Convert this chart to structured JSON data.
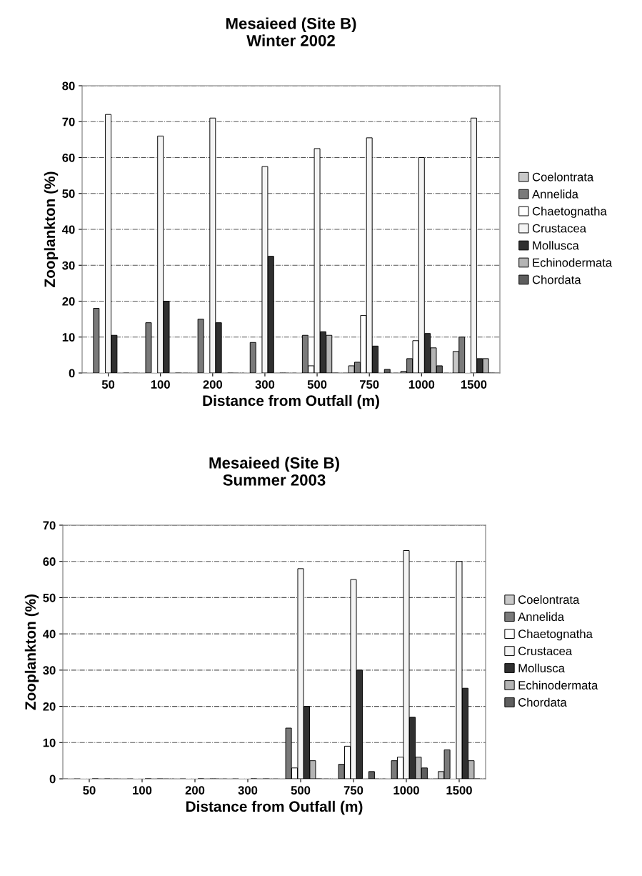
{
  "chart_data": [
    {
      "type": "bar",
      "title": "Mesaieed (Site B)\nWinter 2002",
      "xlabel": "Distance from Outfall (m)",
      "ylabel": "Zooplankton (%)",
      "categories": [
        "50",
        "100",
        "200",
        "300",
        "500",
        "750",
        "1000",
        "1500"
      ],
      "ylim": [
        0,
        80
      ],
      "yticks": [
        0,
        10,
        20,
        30,
        40,
        50,
        60,
        70,
        80
      ],
      "grid": "y",
      "legend": "right",
      "series": [
        {
          "name": "Coelontrata",
          "color": "#c8c8c8",
          "values": [
            0,
            0,
            0,
            0,
            0,
            2,
            0.5,
            6
          ]
        },
        {
          "name": "Annelida",
          "color": "#7a7a7a",
          "values": [
            18,
            14,
            15,
            8.5,
            10.5,
            3,
            4,
            10
          ]
        },
        {
          "name": "Chaetognatha",
          "color": "#ffffff",
          "values": [
            0,
            0,
            0,
            0,
            2,
            16,
            9,
            0
          ]
        },
        {
          "name": "Crustacea",
          "color": "#f4f4f4",
          "values": [
            72,
            66,
            71,
            57.5,
            62.5,
            65.5,
            60,
            71
          ]
        },
        {
          "name": "Mollusca",
          "color": "#303030",
          "values": [
            10.5,
            20,
            14,
            32.5,
            11.5,
            7.5,
            11,
            4
          ]
        },
        {
          "name": "Echinodermata",
          "color": "#b4b4b4",
          "values": [
            0,
            0,
            0,
            0,
            10.5,
            0,
            7,
            4
          ]
        },
        {
          "name": "Chordata",
          "color": "#5e5e5e",
          "values": [
            0,
            0,
            0,
            0,
            0,
            1,
            2,
            0
          ]
        }
      ]
    },
    {
      "type": "bar",
      "title": "Mesaieed (Site B)\nSummer 2003",
      "xlabel": "Distance from Outfall (m)",
      "ylabel": "Zooplankton (%)",
      "categories": [
        "50",
        "100",
        "200",
        "300",
        "500",
        "750",
        "1000",
        "1500"
      ],
      "ylim": [
        0,
        70
      ],
      "yticks": [
        0,
        10,
        20,
        30,
        40,
        50,
        60,
        70
      ],
      "grid": "y",
      "legend": "right",
      "series": [
        {
          "name": "Coelontrata",
          "color": "#c8c8c8",
          "values": [
            0,
            0,
            0,
            0,
            0,
            0,
            0,
            2
          ]
        },
        {
          "name": "Annelida",
          "color": "#7a7a7a",
          "values": [
            0,
            0,
            0,
            0,
            14,
            4,
            5,
            8
          ]
        },
        {
          "name": "Chaetognatha",
          "color": "#ffffff",
          "values": [
            0,
            0,
            0,
            0,
            3,
            9,
            6,
            0
          ]
        },
        {
          "name": "Crustacea",
          "color": "#f4f4f4",
          "values": [
            0,
            0,
            0,
            0,
            58,
            55,
            63,
            60
          ]
        },
        {
          "name": "Mollusca",
          "color": "#303030",
          "values": [
            0,
            0,
            0,
            0,
            20,
            30,
            17,
            25
          ]
        },
        {
          "name": "Echinodermata",
          "color": "#b4b4b4",
          "values": [
            0,
            0,
            0,
            0,
            5,
            0,
            6,
            5
          ]
        },
        {
          "name": "Chordata",
          "color": "#5e5e5e",
          "values": [
            0,
            0,
            0,
            0,
            0,
            2,
            3,
            0
          ]
        }
      ]
    }
  ]
}
